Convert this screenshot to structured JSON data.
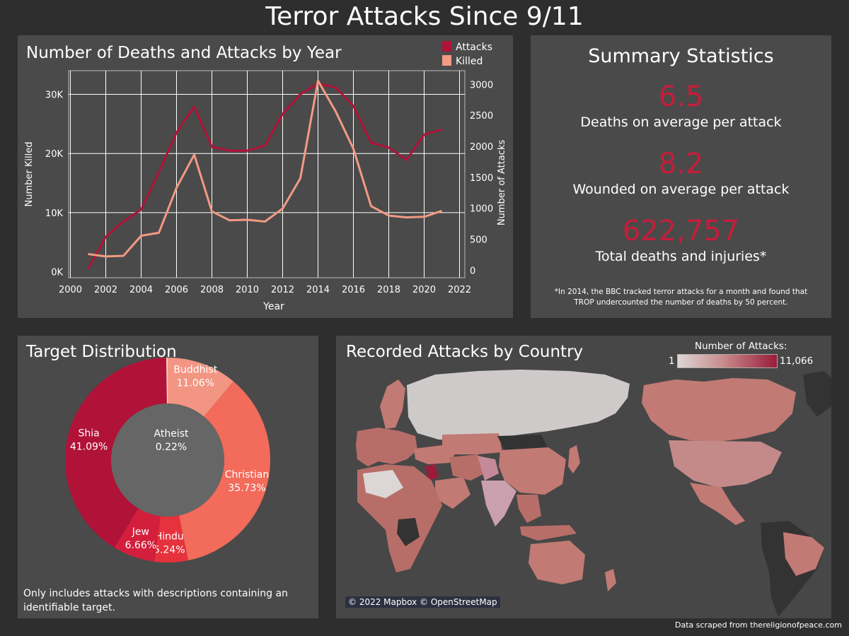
{
  "page": {
    "title": "Terror Attacks Since 9/11",
    "credit": "Data scraped from thereligionofpeace.com"
  },
  "line_panel": {
    "title": "Number of Deaths and Attacks by Year"
  },
  "summary": {
    "title": "Summary Statistics",
    "stats": [
      {
        "value": "6.5",
        "label": "Deaths on average per attack"
      },
      {
        "value": "8.2",
        "label": "Wounded on average per attack"
      },
      {
        "value": "622,757",
        "label": "Total deaths and injuries*"
      }
    ],
    "footnote": "*In 2014, the BBC tracked terror attacks for a month and found that TROP undercounted the number of deaths by 50 percent.",
    "value_color": "#c41e3a"
  },
  "donut_panel": {
    "title": "Target Distribution",
    "note": "Only includes attacks with descriptions containing an identifiable target."
  },
  "map_panel": {
    "title": "Recorded Attacks by Country",
    "legend_title": "Number of Attacks:",
    "legend_min": "1",
    "legend_max": "11,066",
    "attribution": "© 2022 Mapbox © OpenStreetMap",
    "colors": {
      "ocean": "#474747",
      "land_no_data": "#333333",
      "low": "#ddd6d6",
      "mid": "#c27a74",
      "high": "#9a1c3a"
    }
  },
  "chart_data": [
    {
      "type": "line",
      "title": "Number of Deaths and Attacks by Year",
      "xlabel": "Year",
      "x_ticks": [
        "2000",
        "2002",
        "2004",
        "2006",
        "2008",
        "2010",
        "2012",
        "2014",
        "2016",
        "2018",
        "2020",
        "2022"
      ],
      "xlim": [
        1999.9,
        2022.3
      ],
      "x": [
        2001,
        2002,
        2003,
        2004,
        2005,
        2006,
        2007,
        2008,
        2009,
        2010,
        2011,
        2012,
        2013,
        2014,
        2015,
        2016,
        2017,
        2018,
        2019,
        2020,
        2021
      ],
      "grid": "on",
      "legend": "top-right",
      "left_axis": {
        "label": "Number Killed",
        "ticks": [
          "0K",
          "10K",
          "20K",
          "30K"
        ],
        "tick_values": [
          0,
          10000,
          20000,
          30000
        ],
        "ylim": [
          -1000,
          34000
        ]
      },
      "right_axis": {
        "label": "Number of Attacks",
        "ticks": [
          "0",
          "500",
          "1000",
          "1500",
          "2000",
          "2500",
          "3000"
        ],
        "tick_values": [
          0,
          500,
          1000,
          1500,
          2000,
          2500,
          3000
        ],
        "ylim": [
          -120,
          3220
        ]
      },
      "series": [
        {
          "name": "Attacks",
          "axis": "right",
          "color": "#b11238",
          "values": [
            25,
            540,
            790,
            980,
            1580,
            2220,
            2640,
            1990,
            1930,
            1930,
            2010,
            2520,
            2840,
            3010,
            2950,
            2650,
            2060,
            1980,
            1780,
            2190,
            2270
          ]
        },
        {
          "name": "Killed",
          "axis": "left",
          "color": "#f29a83",
          "values": [
            3000,
            2600,
            2700,
            6100,
            6600,
            14200,
            19800,
            10200,
            8700,
            8800,
            8500,
            10700,
            15800,
            32300,
            27100,
            20800,
            11100,
            9500,
            9200,
            9300,
            10300
          ]
        }
      ]
    },
    {
      "type": "pie",
      "title": "",
      "center_label": "Atheist",
      "center_value": "0.22%",
      "slices": [
        {
          "label": "Buddhist",
          "value": 11.06,
          "display": "11.06%",
          "color": "#f39583"
        },
        {
          "label": "Christian",
          "value": 35.73,
          "display": "35.73%",
          "color": "#f26b5b"
        },
        {
          "label": "Hindu",
          "value": 5.24,
          "display": "5.24%",
          "color": "#e5323c"
        },
        {
          "label": "Jew",
          "value": 6.66,
          "display": "6.66%",
          "color": "#d31f3c"
        },
        {
          "label": "Shia",
          "value": 41.09,
          "display": "41.09%",
          "color": "#b11238"
        },
        {
          "label": "Atheist",
          "value": 0.22,
          "display": "0.22%",
          "color": "#fdd0c2"
        }
      ]
    }
  ]
}
